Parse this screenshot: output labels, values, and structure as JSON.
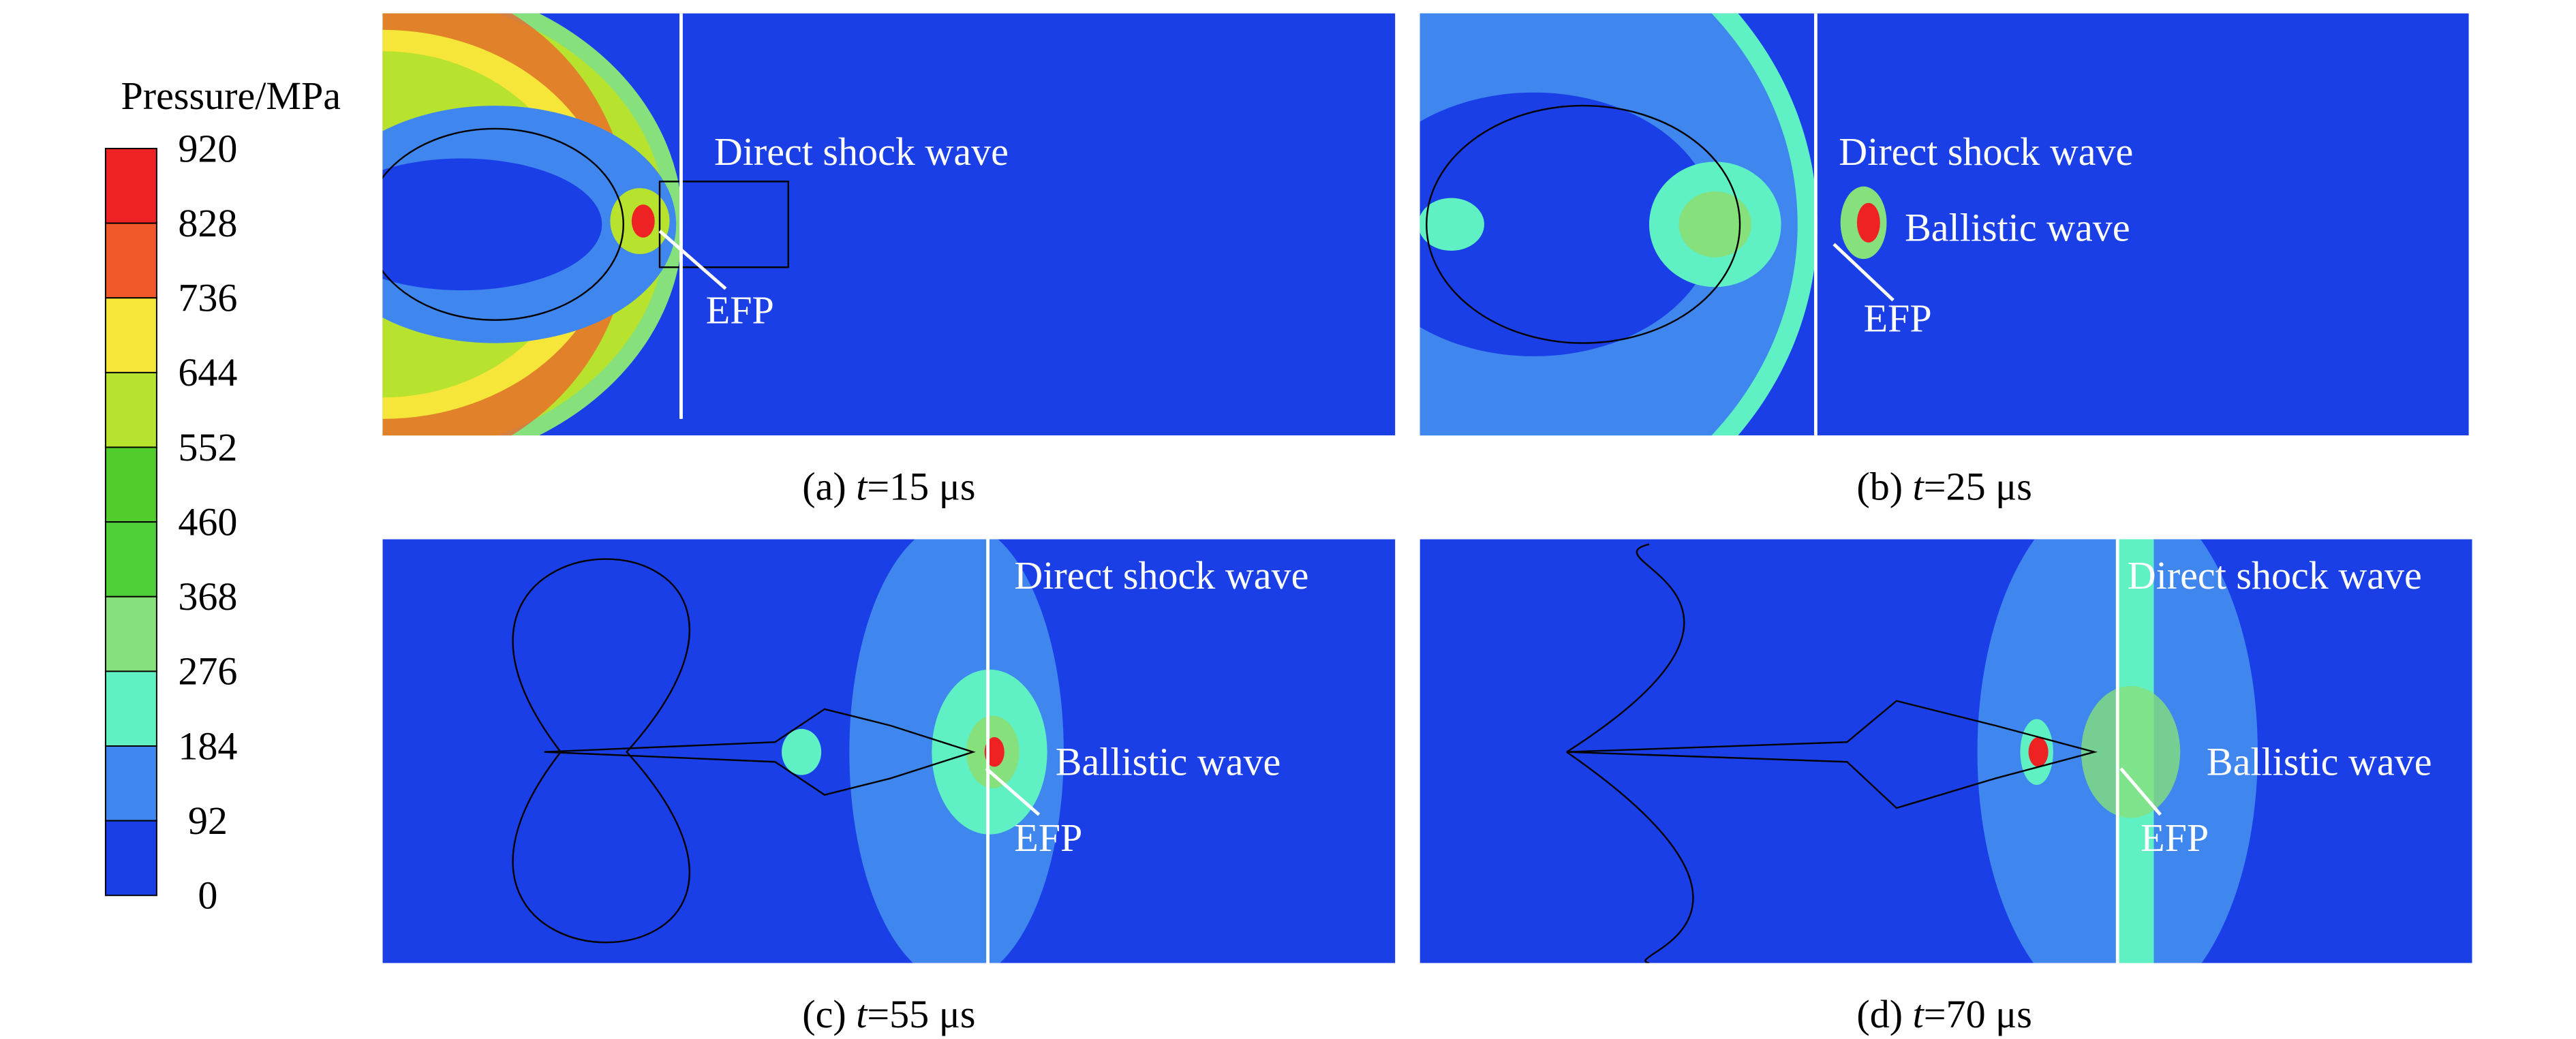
{
  "colorbar": {
    "title": "Pressure/MPa",
    "ticks": [
      920,
      828,
      736,
      644,
      552,
      460,
      368,
      276,
      184,
      92,
      0
    ],
    "colors": [
      "#ee2222",
      "#f2592a",
      "#f7e63a",
      "#b7e22e",
      "#52cc2c",
      "#4fcf3a",
      "#86e07c",
      "#5ff0c4",
      "#3f87ee",
      "#1b3fe6"
    ]
  },
  "panels": [
    {
      "label": "(a)",
      "var": "t",
      "time": "=15 μs",
      "annotations": [
        "Direct shock wave",
        "EFP"
      ]
    },
    {
      "label": "(b)",
      "var": "t",
      "time": "=25 μs",
      "annotations": [
        "Direct shock wave",
        "Ballistic wave",
        "EFP"
      ]
    },
    {
      "label": "(c)",
      "var": "t",
      "time": "=55 μs",
      "annotations": [
        "Direct shock wave",
        "Ballistic wave",
        "EFP"
      ]
    },
    {
      "label": "(d)",
      "var": "t",
      "time": "=70 μs",
      "annotations": [
        "Direct shock wave",
        "Ballistic wave",
        "EFP"
      ]
    }
  ]
}
